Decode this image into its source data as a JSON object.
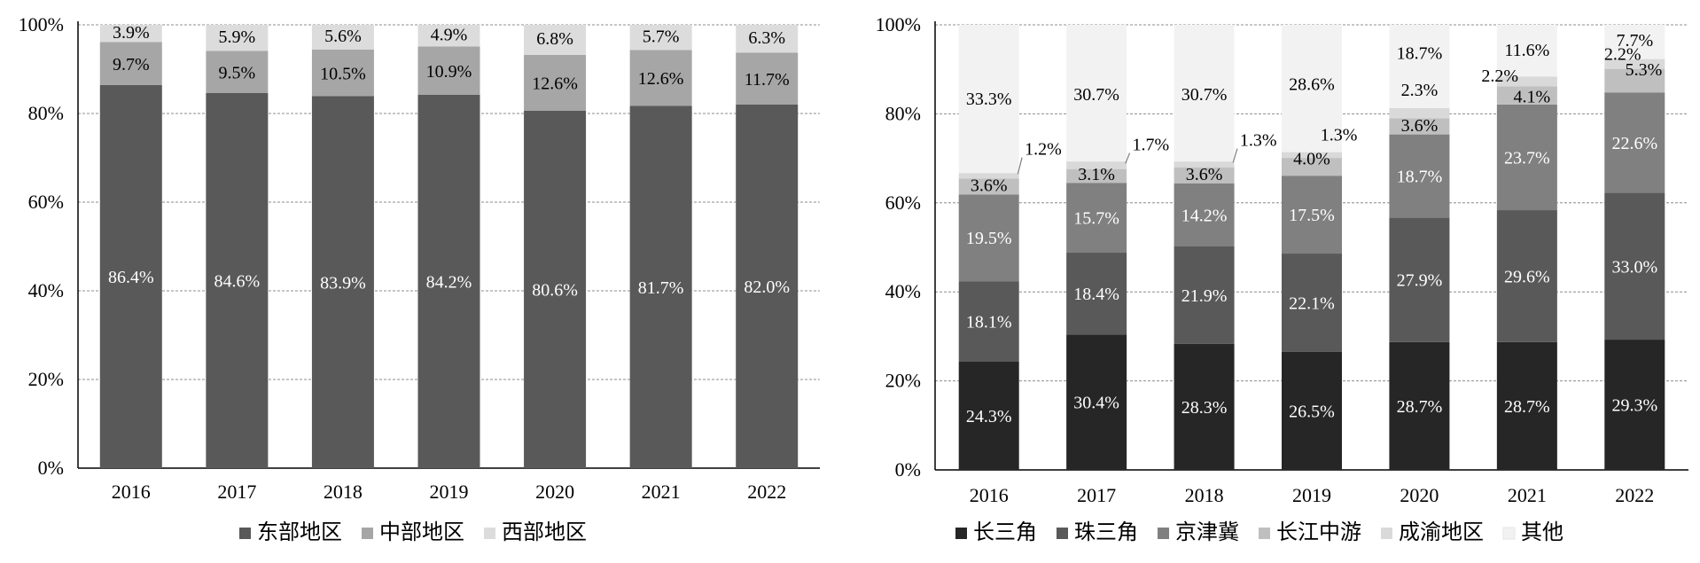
{
  "chart_data": [
    {
      "type": "bar",
      "stacked": true,
      "title": "",
      "xlabel": "",
      "ylabel": "",
      "ylim": [
        0,
        100
      ],
      "y_ticks": [
        "0%",
        "20%",
        "40%",
        "60%",
        "80%",
        "100%"
      ],
      "grid": true,
      "legend_position": "bottom",
      "categories": [
        "2016",
        "2017",
        "2018",
        "2019",
        "2020",
        "2021",
        "2022"
      ],
      "series": [
        {
          "name": "东部地区",
          "color": "#595959",
          "label_color": "#ffffff",
          "values": [
            86.4,
            84.6,
            83.9,
            84.2,
            80.6,
            81.7,
            82.0
          ],
          "labels": [
            "86.4%",
            "84.6%",
            "83.9%",
            "84.2%",
            "80.6%",
            "81.7%",
            "82.0%"
          ]
        },
        {
          "name": "中部地区",
          "color": "#a6a6a6",
          "label_color": "#000000",
          "values": [
            9.7,
            9.5,
            10.5,
            10.9,
            12.6,
            12.6,
            11.7
          ],
          "labels": [
            "9.7%",
            "9.5%",
            "10.5%",
            "10.9%",
            "12.6%",
            "12.6%",
            "11.7%"
          ]
        },
        {
          "name": "西部地区",
          "color": "#dcdcdc",
          "label_color": "#000000",
          "values": [
            3.9,
            5.9,
            5.6,
            4.9,
            6.8,
            5.7,
            6.3
          ],
          "labels": [
            "3.9%",
            "5.9%",
            "5.6%",
            "4.9%",
            "6.8%",
            "5.7%",
            "6.3%"
          ]
        }
      ]
    },
    {
      "type": "bar",
      "stacked": true,
      "title": "",
      "xlabel": "",
      "ylabel": "",
      "ylim": [
        0,
        100
      ],
      "y_ticks": [
        "0%",
        "20%",
        "40%",
        "60%",
        "80%",
        "100%"
      ],
      "grid": true,
      "legend_position": "bottom",
      "categories": [
        "2016",
        "2017",
        "2018",
        "2019",
        "2020",
        "2021",
        "2022"
      ],
      "series": [
        {
          "name": "长三角",
          "color": "#262626",
          "label_color": "#ffffff",
          "values": [
            24.3,
            30.4,
            28.3,
            26.5,
            28.7,
            28.7,
            29.3
          ],
          "labels": [
            "24.3%",
            "30.4%",
            "28.3%",
            "26.5%",
            "28.7%",
            "28.7%",
            "29.3%"
          ]
        },
        {
          "name": "珠三角",
          "color": "#595959",
          "label_color": "#ffffff",
          "values": [
            18.1,
            18.4,
            21.9,
            22.1,
            27.9,
            29.6,
            33.0
          ],
          "labels": [
            "18.1%",
            "18.4%",
            "21.9%",
            "22.1%",
            "27.9%",
            "29.6%",
            "33.0%"
          ]
        },
        {
          "name": "京津冀",
          "color": "#808080",
          "label_color": "#ffffff",
          "values": [
            19.5,
            15.7,
            14.2,
            17.5,
            18.7,
            23.7,
            22.6
          ],
          "labels": [
            "19.5%",
            "15.7%",
            "14.2%",
            "17.5%",
            "18.7%",
            "23.7%",
            "22.6%"
          ]
        },
        {
          "name": "长江中游",
          "color": "#bfbfbf",
          "label_color": "#000000",
          "values": [
            3.6,
            3.1,
            3.6,
            4.0,
            3.6,
            4.1,
            5.3
          ],
          "labels": [
            "3.6%",
            "3.1%",
            "3.6%",
            "4.0%",
            "3.6%",
            "4.1%",
            "5.3%"
          ]
        },
        {
          "name": "成渝地区",
          "color": "#d9d9d9",
          "label_color": "#000000",
          "values": [
            1.2,
            1.7,
            1.3,
            1.3,
            2.3,
            2.2,
            2.2
          ],
          "labels": [
            "1.2%",
            "1.7%",
            "1.3%",
            "1.3%",
            "2.3%",
            "2.2%",
            "2.2%"
          ]
        },
        {
          "name": "其他",
          "color": "#f2f2f2",
          "label_color": "#000000",
          "values": [
            33.3,
            30.7,
            30.7,
            28.6,
            18.7,
            11.6,
            7.7
          ],
          "labels": [
            "33.3%",
            "30.7%",
            "30.7%",
            "28.6%",
            "18.7%",
            "11.6%",
            "7.7%"
          ]
        }
      ]
    }
  ]
}
